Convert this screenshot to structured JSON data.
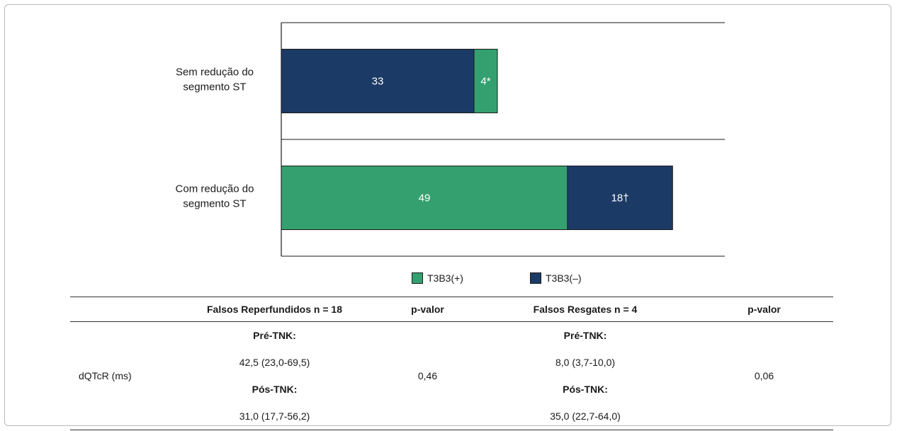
{
  "chart_data": {
    "type": "bar",
    "orientation": "horizontal",
    "stacked": true,
    "categories": [
      "Sem redução do segmento ST",
      "Com redução do segmento ST"
    ],
    "category_lines": [
      [
        "Sem redução do",
        "segmento ST"
      ],
      [
        "Com redução do",
        "segmento ST"
      ]
    ],
    "segments": [
      [
        {
          "series": "T3B3(–)",
          "value": 33,
          "label": "33"
        },
        {
          "series": "T3B3(+)",
          "value": 4,
          "label": "4*"
        }
      ],
      [
        {
          "series": "T3B3(+)",
          "value": 49,
          "label": "49"
        },
        {
          "series": "T3B3(–)",
          "value": 18,
          "label": "18†"
        }
      ]
    ],
    "series": [
      {
        "name": "T3B3(+)",
        "color": "#35a06f"
      },
      {
        "name": "T3B3(–)",
        "color": "#1c3a66"
      }
    ],
    "xlim": [
      0,
      74
    ],
    "legend_position": "bottom"
  },
  "legend": {
    "items": [
      {
        "label": "T3B3(+)",
        "color": "#35a06f"
      },
      {
        "label": "T3B3(–)",
        "color": "#1c3a66"
      }
    ]
  },
  "table": {
    "headers": [
      "",
      "Falsos Reperfundidos n = 18",
      "p-valor",
      "Falsos Resgates n = 4",
      "p-valor"
    ],
    "row_label": "dQTcR (ms)",
    "fr_pre_label": "Pré-TNK:",
    "fr_pre_value": "42,5 (23,0-69,5)",
    "fr_pos_label": "Pós-TNK:",
    "fr_pos_value": "31,0 (17,7-56,2)",
    "fr_p": "0,46",
    "fs_pre_label": "Pré-TNK:",
    "fs_pre_value": "8,0 (3,7-10,0)",
    "fs_pos_label": "Pós-TNK:",
    "fs_pos_value": "35,0 (22,7-64,0)",
    "fs_p": "0,06"
  }
}
